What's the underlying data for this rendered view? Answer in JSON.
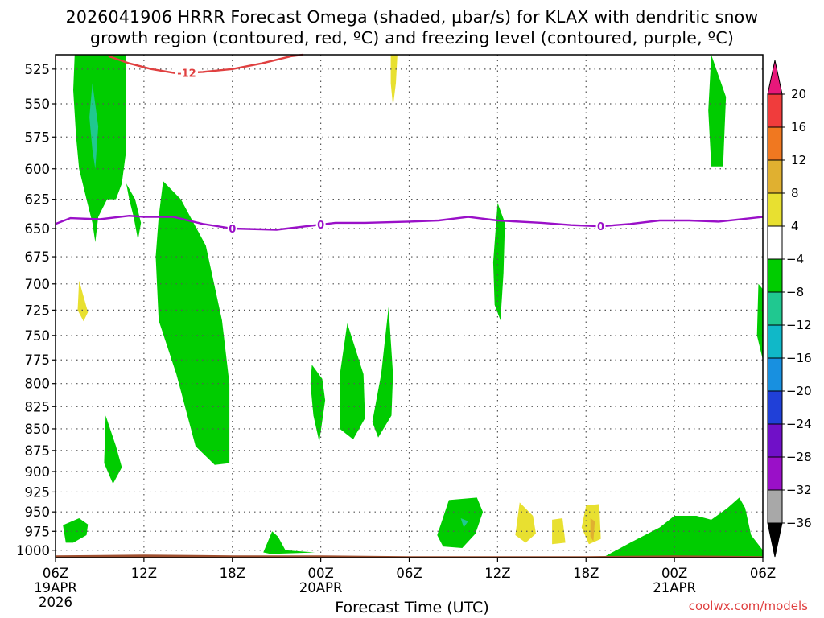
{
  "chart_data": {
    "type": "heatmap",
    "title_lines": [
      "2026041906 HRRR Forecast Omega (shaded, μbar/s) for KLAX with dendritic snow",
      "growth region (contoured, red, ºC) and freezing level (contoured, purple, ºC)"
    ],
    "xlabel": "Forecast Time (UTC)",
    "ylabel": "",
    "credit": "coolwx.com/models",
    "x_hours": [
      0,
      6,
      12,
      18,
      24,
      30,
      36,
      42,
      48
    ],
    "x_ticks": [
      {
        "hour": 0,
        "label": "06Z",
        "date": "19APR",
        "year": "2026"
      },
      {
        "hour": 6,
        "label": "12Z",
        "date": "",
        "year": ""
      },
      {
        "hour": 12,
        "label": "18Z",
        "date": "",
        "year": ""
      },
      {
        "hour": 18,
        "label": "00Z",
        "date": "20APR",
        "year": ""
      },
      {
        "hour": 24,
        "label": "06Z",
        "date": "",
        "year": ""
      },
      {
        "hour": 30,
        "label": "12Z",
        "date": "",
        "year": ""
      },
      {
        "hour": 36,
        "label": "18Z",
        "date": "",
        "year": ""
      },
      {
        "hour": 42,
        "label": "00Z",
        "date": "21APR",
        "year": ""
      },
      {
        "hour": 48,
        "label": "06Z",
        "date": "",
        "year": ""
      }
    ],
    "xlim": [
      0,
      48
    ],
    "y_ticks": [
      525,
      550,
      575,
      600,
      625,
      650,
      675,
      700,
      725,
      750,
      775,
      800,
      825,
      850,
      875,
      900,
      925,
      950,
      975,
      1000
    ],
    "ylim_hPa": [
      515,
      1010
    ],
    "y_scale": "log-pressure",
    "grid": true,
    "colorbar": {
      "labels": [
        20,
        16,
        12,
        8,
        4,
        -4,
        -8,
        -12,
        -16,
        -20,
        -24,
        -28,
        -32,
        -36
      ],
      "bins": [
        {
          "range": [
            16,
            20
          ],
          "color": "#f03c3c"
        },
        {
          "range": [
            12,
            16
          ],
          "color": "#f07820"
        },
        {
          "range": [
            8,
            12
          ],
          "color": "#e0b030"
        },
        {
          "range": [
            4,
            8
          ],
          "color": "#e8e030"
        },
        {
          "range": [
            -4,
            4
          ],
          "color": "#ffffff"
        },
        {
          "range": [
            -8,
            -4
          ],
          "color": "#00cc00"
        },
        {
          "range": [
            -12,
            -8
          ],
          "color": "#20c890"
        },
        {
          "range": [
            -16,
            -12
          ],
          "color": "#10b8c8"
        },
        {
          "range": [
            -20,
            -16
          ],
          "color": "#1890e0"
        },
        {
          "range": [
            -24,
            -20
          ],
          "color": "#2040d8"
        },
        {
          "range": [
            -28,
            -24
          ],
          "color": "#7010c8"
        },
        {
          "range": [
            -32,
            -28
          ],
          "color": "#9a10c8"
        },
        {
          "range": [
            -36,
            -32
          ],
          "color": "#a8a8a8"
        }
      ],
      "over_color": "#e8187a",
      "under_color": "#000000"
    },
    "series": [
      {
        "name": "freezing level 0ºC (purple)",
        "color": "#9a10c8",
        "label": "0",
        "label_hours": [
          12,
          18,
          37
        ],
        "points": [
          [
            0,
            646
          ],
          [
            1,
            641
          ],
          [
            3,
            642
          ],
          [
            5,
            639
          ],
          [
            6,
            640
          ],
          [
            8,
            640
          ],
          [
            10,
            646
          ],
          [
            12,
            650
          ],
          [
            15,
            651
          ],
          [
            17,
            648
          ],
          [
            19,
            645
          ],
          [
            21,
            645
          ],
          [
            24,
            644
          ],
          [
            26,
            643
          ],
          [
            28,
            640
          ],
          [
            30,
            643
          ],
          [
            33,
            645
          ],
          [
            35,
            647
          ],
          [
            37,
            648
          ],
          [
            39,
            646
          ],
          [
            41,
            643
          ],
          [
            43,
            643
          ],
          [
            45,
            644
          ],
          [
            48,
            640
          ]
        ]
      },
      {
        "name": "dendritic growth -12ºC (red)",
        "color": "#e04040",
        "label": "-12",
        "label_hours": [
          8.9
        ],
        "points": [
          [
            3.6,
            516
          ],
          [
            5,
            521
          ],
          [
            6.5,
            525
          ],
          [
            8.2,
            528
          ],
          [
            10,
            527
          ],
          [
            12,
            525
          ],
          [
            14,
            521
          ],
          [
            16,
            516
          ],
          [
            16.8,
            515
          ]
        ]
      },
      {
        "name": "ground / surface",
        "color": "#a05030",
        "points": [
          [
            0,
            1007
          ],
          [
            6,
            1006
          ],
          [
            12,
            1007
          ],
          [
            18,
            1007
          ],
          [
            24,
            1008
          ],
          [
            30,
            1008
          ],
          [
            36,
            1008
          ],
          [
            42,
            1007
          ],
          [
            48,
            1008
          ]
        ]
      }
    ],
    "shaded_regions": [
      {
        "value": -6,
        "points": [
          [
            1.3,
            515
          ],
          [
            4.8,
            515
          ],
          [
            4.8,
            585
          ],
          [
            4.5,
            612
          ],
          [
            4.1,
            625
          ],
          [
            3.5,
            625
          ],
          [
            2.9,
            640
          ],
          [
            2.7,
            662
          ],
          [
            2.5,
            645
          ],
          [
            2.1,
            625
          ],
          [
            1.6,
            600
          ],
          [
            1.4,
            575
          ],
          [
            1.2,
            540
          ]
        ]
      },
      {
        "value": -10,
        "points": [
          [
            2.5,
            535
          ],
          [
            2.9,
            567
          ],
          [
            2.7,
            600
          ],
          [
            2.5,
            585
          ],
          [
            2.3,
            560
          ]
        ]
      },
      {
        "value": -6,
        "points": [
          [
            4.8,
            612
          ],
          [
            5.4,
            625
          ],
          [
            5.8,
            645
          ],
          [
            5.6,
            660
          ],
          [
            5.3,
            640
          ],
          [
            5.0,
            625
          ]
        ]
      },
      {
        "value": -6,
        "points": [
          [
            0.5,
            967
          ],
          [
            1.6,
            958
          ],
          [
            2.2,
            966
          ],
          [
            2.1,
            980
          ],
          [
            1.2,
            990
          ],
          [
            0.7,
            990
          ]
        ]
      },
      {
        "value": 6,
        "points": [
          [
            1.6,
            697
          ],
          [
            2.2,
            727
          ],
          [
            1.9,
            736
          ],
          [
            1.5,
            725
          ]
        ]
      },
      {
        "value": -6,
        "points": [
          [
            3.4,
            835
          ],
          [
            4.1,
            870
          ],
          [
            4.5,
            895
          ],
          [
            3.9,
            915
          ],
          [
            3.3,
            890
          ]
        ]
      },
      {
        "value": -6,
        "points": [
          [
            7.3,
            610
          ],
          [
            8.5,
            625
          ],
          [
            10.2,
            665
          ],
          [
            11.3,
            735
          ],
          [
            11.8,
            800
          ],
          [
            11.8,
            890
          ],
          [
            10.8,
            892
          ],
          [
            9.5,
            870
          ],
          [
            8.2,
            790
          ],
          [
            7.0,
            735
          ],
          [
            6.8,
            675
          ],
          [
            7.0,
            640
          ]
        ]
      },
      {
        "value": -6,
        "points": [
          [
            14.7,
            975
          ],
          [
            15.1,
            982
          ],
          [
            15.6,
            1000
          ],
          [
            17.6,
            1003
          ],
          [
            14.6,
            1005
          ],
          [
            14.1,
            1003
          ]
        ]
      },
      {
        "value": -6,
        "points": [
          [
            17.4,
            780
          ],
          [
            18.1,
            795
          ],
          [
            18.3,
            818
          ],
          [
            17.9,
            865
          ],
          [
            17.5,
            835
          ],
          [
            17.3,
            800
          ]
        ]
      },
      {
        "value": -6,
        "points": [
          [
            19.8,
            738
          ],
          [
            20.9,
            790
          ],
          [
            21.0,
            838
          ],
          [
            20.2,
            862
          ],
          [
            19.3,
            850
          ],
          [
            19.3,
            790
          ]
        ]
      },
      {
        "value": -6,
        "points": [
          [
            22.6,
            722
          ],
          [
            22.9,
            790
          ],
          [
            22.8,
            835
          ],
          [
            21.9,
            860
          ],
          [
            21.5,
            842
          ],
          [
            22.1,
            790
          ]
        ]
      },
      {
        "value": 6,
        "points": [
          [
            22.75,
            515
          ],
          [
            23.2,
            515
          ],
          [
            23.1,
            535
          ],
          [
            22.9,
            552
          ],
          [
            22.75,
            535
          ]
        ]
      },
      {
        "value": -6,
        "points": [
          [
            26.7,
            935
          ],
          [
            28.6,
            932
          ],
          [
            29.0,
            950
          ],
          [
            28.5,
            978
          ],
          [
            27.6,
            997
          ],
          [
            26.3,
            995
          ],
          [
            25.9,
            980
          ]
        ]
      },
      {
        "value": -10,
        "points": [
          [
            27.5,
            958
          ],
          [
            28.0,
            962
          ],
          [
            27.7,
            970
          ]
        ]
      },
      {
        "value": 6,
        "points": [
          [
            31.5,
            938
          ],
          [
            32.4,
            955
          ],
          [
            32.6,
            978
          ],
          [
            31.9,
            990
          ],
          [
            31.2,
            980
          ]
        ]
      },
      {
        "value": 6,
        "points": [
          [
            33.7,
            960
          ],
          [
            34.4,
            958
          ],
          [
            34.6,
            990
          ],
          [
            33.7,
            992
          ]
        ]
      },
      {
        "value": 6,
        "points": [
          [
            36.0,
            942
          ],
          [
            36.9,
            940
          ],
          [
            37.0,
            985
          ],
          [
            36.2,
            992
          ],
          [
            35.7,
            970
          ]
        ]
      },
      {
        "value": 9,
        "points": [
          [
            36.3,
            958
          ],
          [
            36.6,
            962
          ],
          [
            36.5,
            988
          ],
          [
            36.3,
            982
          ]
        ]
      },
      {
        "value": -6,
        "points": [
          [
            30.0,
            628
          ],
          [
            30.5,
            645
          ],
          [
            30.4,
            690
          ],
          [
            30.2,
            735
          ],
          [
            29.8,
            720
          ],
          [
            29.7,
            680
          ]
        ]
      },
      {
        "value": -6,
        "points": [
          [
            44.5,
            515
          ],
          [
            45.5,
            545
          ],
          [
            45.4,
            570
          ],
          [
            45.3,
            598
          ],
          [
            44.5,
            598
          ],
          [
            44.3,
            555
          ]
        ]
      },
      {
        "value": -6,
        "points": [
          [
            47.7,
            700
          ],
          [
            48,
            705
          ],
          [
            48,
            775
          ],
          [
            47.6,
            750
          ]
        ]
      },
      {
        "value": -6,
        "points": [
          [
            37.3,
            1008
          ],
          [
            39,
            990
          ],
          [
            41,
            970
          ],
          [
            42,
            955
          ],
          [
            43.5,
            955
          ],
          [
            44.5,
            960
          ],
          [
            45.6,
            945
          ],
          [
            46.4,
            932
          ],
          [
            46.8,
            945
          ],
          [
            47.2,
            980
          ],
          [
            48,
            1000
          ],
          [
            48,
            1010
          ],
          [
            37.3,
            1010
          ]
        ]
      }
    ]
  }
}
